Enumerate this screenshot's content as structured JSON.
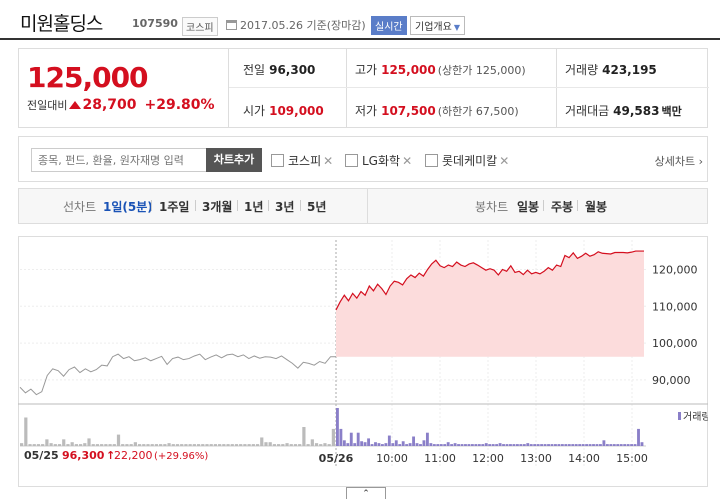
{
  "header": {
    "stock_name": "미원홀딩스",
    "stock_code": "107590",
    "market": "코스피",
    "date_text": "2017.05.26  기준(장마감)",
    "realtime_label": "실시간",
    "company_overview_label": "기업개요"
  },
  "summary": {
    "current_price": "125,000",
    "change_label": "전일대비",
    "change_value": "28,700",
    "change_pct": "+29.80%",
    "prev_label": "전일",
    "prev_value": "96,300",
    "high_label": "고가",
    "high_value": "125,000",
    "upper_limit": "(상한가 125,000)",
    "volume_label": "거래량",
    "volume_value": "423,195",
    "open_label": "시가",
    "open_value": "109,000",
    "low_label": "저가",
    "low_value": "107,500",
    "lower_limit": "(하한가 67,500)",
    "amount_label": "거래대금",
    "amount_value": "49,583",
    "amount_unit": "백만"
  },
  "compare": {
    "search_placeholder": "종목, 펀드, 환율, 원자재명 입력",
    "add_button": "차트추가",
    "items": [
      "코스피",
      "LG화학",
      "롯데케미칼"
    ],
    "detail_label": "상세차트 ›"
  },
  "periods": {
    "line_label": "선차트",
    "line_items": [
      "1일(5분)",
      "1주일",
      "3개월",
      "1년",
      "3년",
      "5년"
    ],
    "candle_label": "봉차트",
    "candle_items": [
      "일봉",
      "주봉",
      "월봉"
    ]
  },
  "chart_data": {
    "type": "line",
    "title": "",
    "y_ticks": [
      "120,000",
      "110,000",
      "100,000",
      "90,000"
    ],
    "ylim": [
      84000,
      128000
    ],
    "x_ticks": [
      "05/26",
      "10:00",
      "11:00",
      "12:00",
      "13:00",
      "14:00",
      "15:00"
    ],
    "prev_day_label": "05/25",
    "prev_day_close": "96,300",
    "prev_day_change": "22,200",
    "prev_day_change_pct": "(+29.96%)",
    "volume_legend": "거래량",
    "colors": {
      "prev": "#999999",
      "today": "#d40f1f",
      "fill": "#fcdcdc",
      "volume": "#8a7fc8"
    },
    "series": [
      {
        "name": "05/25",
        "values": [
          88000,
          86500,
          87500,
          86000,
          86800,
          91200,
          93000,
          92500,
          91000,
          92800,
          93500,
          92000,
          93000,
          92200,
          92800,
          94000,
          93800,
          96300,
          97000,
          95800,
          96300,
          95200,
          95500,
          96000,
          95200,
          95800,
          96400,
          94200,
          95800,
          96200,
          95500,
          95800,
          96500,
          97000,
          95500,
          96200,
          96800,
          96000,
          96800,
          97000,
          96300,
          96800,
          95800,
          96500,
          95900,
          96300,
          96200,
          95800,
          96500,
          95500,
          94500,
          93200,
          94800,
          94500,
          94000,
          95000,
          94500,
          96300,
          96300
        ]
      },
      {
        "name": "05/26",
        "values": [
          109000,
          111200,
          113000,
          111500,
          113500,
          112200,
          114000,
          113000,
          115500,
          114200,
          116000,
          114800,
          113200,
          115500,
          116800,
          116500,
          115800,
          117500,
          118500,
          117800,
          119000,
          118200,
          120000,
          121500,
          122500,
          121000,
          120500,
          121200,
          120800,
          122000,
          121200,
          120800,
          121500,
          121800,
          121200,
          120500,
          119800,
          120200,
          119800,
          118500,
          120000,
          119500,
          121000,
          119200,
          119500,
          118600,
          119800,
          118800,
          119200,
          118800,
          119500,
          120500,
          119800,
          121200,
          120800,
          123800,
          123200,
          124500,
          123000,
          123600,
          124400,
          123600,
          124000,
          124800,
          124400,
          124300,
          124200,
          124600,
          124600,
          124600,
          124500,
          124700,
          125000,
          125000,
          125000
        ]
      }
    ],
    "volume_prev": [
      3,
      30,
      2,
      2,
      2,
      2,
      7,
      3,
      2,
      2,
      7,
      2,
      4,
      2,
      2,
      3,
      8,
      2,
      2,
      2,
      2,
      2,
      2,
      12,
      2,
      2,
      2,
      4,
      2,
      2,
      2,
      2,
      2,
      2,
      2,
      3,
      2,
      2,
      2,
      2,
      2,
      2,
      2,
      2,
      2,
      2,
      2,
      2,
      2,
      2,
      2,
      2,
      2,
      2,
      2,
      2,
      2,
      9,
      4,
      4,
      2,
      2,
      2,
      3,
      2,
      2,
      2,
      20,
      2,
      7,
      3,
      2,
      3,
      2,
      18
    ],
    "volume_today": [
      40,
      18,
      6,
      3,
      14,
      3,
      14,
      5,
      4,
      8,
      2,
      4,
      3,
      2,
      3,
      11,
      3,
      6,
      2,
      5,
      2,
      3,
      10,
      3,
      2,
      6,
      14,
      3,
      2,
      2,
      2,
      2,
      4,
      2,
      3,
      2,
      2,
      2,
      2,
      2,
      2,
      2,
      2,
      3,
      2,
      2,
      2,
      3,
      2,
      2,
      2,
      2,
      2,
      2,
      2,
      3,
      2,
      2,
      2,
      2,
      2,
      2,
      2,
      2,
      2,
      2,
      2,
      2,
      2,
      2,
      2,
      2,
      2,
      2,
      2,
      2,
      2,
      6,
      2,
      2,
      2,
      2,
      2,
      2,
      2,
      2,
      2,
      18,
      4
    ]
  }
}
